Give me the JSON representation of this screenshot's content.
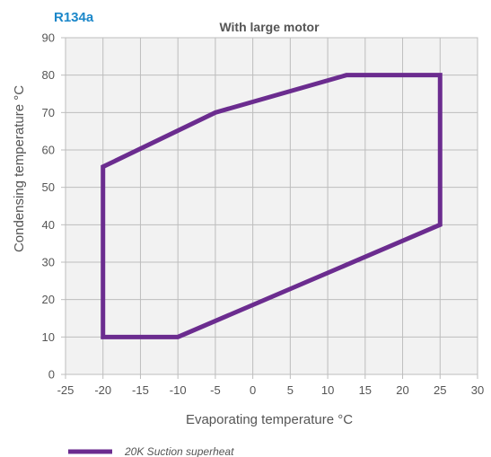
{
  "refrigerant_label": "R134a",
  "colors": {
    "refrigerant": "#1b87c9",
    "series": "#6b2c8f",
    "plot_bg": "#f2f2f2",
    "grid": "#bdbdbd",
    "text": "#555555"
  },
  "chart_data": {
    "type": "line",
    "title": "With large motor",
    "xlabel": "Evaporating temperature °C",
    "ylabel": "Condensing temperature °C",
    "xlim": [
      -25,
      30
    ],
    "ylim": [
      0,
      90
    ],
    "x_ticks": [
      -25,
      -20,
      -15,
      -10,
      -5,
      0,
      5,
      10,
      15,
      20,
      25,
      30
    ],
    "y_ticks": [
      0,
      10,
      20,
      30,
      40,
      50,
      60,
      70,
      80,
      90
    ],
    "grid": true,
    "legend_position": "bottom-left",
    "series": [
      {
        "name": "20K Suction superheat",
        "closed": true,
        "points": [
          [
            -20,
            10
          ],
          [
            -10,
            10
          ],
          [
            25,
            40
          ],
          [
            25,
            80
          ],
          [
            12.5,
            80
          ],
          [
            -5,
            70
          ],
          [
            -20,
            55.5
          ],
          [
            -20,
            10
          ]
        ]
      }
    ]
  }
}
